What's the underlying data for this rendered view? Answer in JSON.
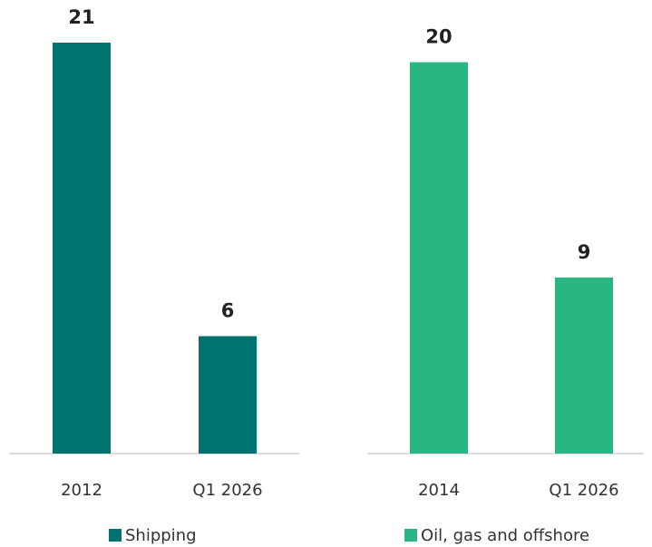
{
  "chart_data": [
    {
      "type": "bar",
      "categories": [
        "2012",
        "Q1 2026"
      ],
      "series": [
        {
          "name": "Shipping",
          "color": "#007370",
          "values": [
            21,
            6
          ]
        }
      ]
    },
    {
      "type": "bar",
      "categories": [
        "2014",
        "Q1 2026"
      ],
      "series": [
        {
          "name": "Oil, gas and offshore",
          "color": "#2bb582",
          "values": [
            20,
            9
          ]
        }
      ]
    }
  ]
}
